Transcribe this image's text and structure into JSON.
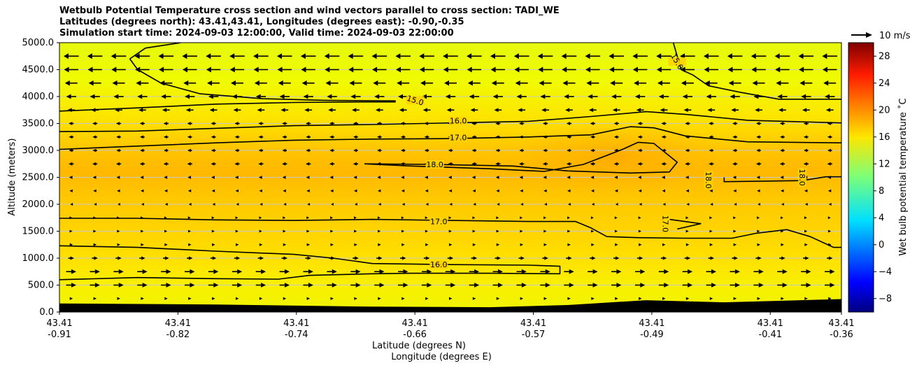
{
  "chart_data": {
    "type": "contour",
    "title_lines": [
      "Wetbulb Potential Temperature cross section and wind vectors parallel to cross section: TADI_WE",
      "Latitudes (degrees north): 43.41,43.41, Longitudes (degrees east): -0.90,-0.35",
      "Simulation start time: 2024-09-03 12:00:00, Valid time: 2024-09-03 22:00:00"
    ],
    "ylabel": "Altitude (meters)",
    "xlabel_lat": "Latitude (degrees N)",
    "xlabel_lon": "Longitude (degrees E)",
    "ylim": [
      0,
      5000
    ],
    "y_ticks": [
      "0.0",
      "500.0",
      "1000.0",
      "1500.0",
      "2000.0",
      "2500.0",
      "3000.0",
      "3500.0",
      "4000.0",
      "4500.0",
      "5000.0"
    ],
    "y_tick_values": [
      0,
      500,
      1000,
      1500,
      2000,
      2500,
      3000,
      3500,
      4000,
      4500,
      5000
    ],
    "x_ticks": [
      {
        "frac": 0.0,
        "lat": "43.41",
        "lon": "-0.91"
      },
      {
        "frac": 0.1515,
        "lat": "43.41",
        "lon": "-0.82"
      },
      {
        "frac": 0.303,
        "lat": "43.41",
        "lon": "-0.74"
      },
      {
        "frac": 0.4545,
        "lat": "43.41",
        "lon": "-0.66"
      },
      {
        "frac": 0.606,
        "lat": "43.41",
        "lon": "-0.57"
      },
      {
        "frac": 0.7575,
        "lat": "43.41",
        "lon": "-0.49"
      },
      {
        "frac": 0.909,
        "lat": "43.41",
        "lon": "-0.41"
      },
      {
        "frac": 1.0,
        "lat": "43.41",
        "lon": "-0.36"
      }
    ],
    "colorbar": {
      "label": "Wet bulb potential temperature $^\\circ$C",
      "label_display": "Wet bulb potential temperature ˚C",
      "range": [
        -10,
        30
      ],
      "ticks": [
        "−8",
        "−4",
        "0",
        "4",
        "8",
        "12",
        "16",
        "20",
        "24",
        "28"
      ],
      "tick_values": [
        -8,
        -4,
        0,
        4,
        8,
        12,
        16,
        20,
        24,
        28
      ],
      "colormap": "jet"
    },
    "quiver_key": {
      "label": "10 m/s"
    },
    "contour_labels": [
      {
        "text": "15.0",
        "x": 0.455,
        "alt": 3930,
        "rot": 18
      },
      {
        "text": "15.0",
        "x": 0.79,
        "alt": 4650,
        "rot": 60
      },
      {
        "text": "16.0",
        "x": 0.51,
        "alt": 3550,
        "rot": 0
      },
      {
        "text": "17.0",
        "x": 0.51,
        "alt": 3240,
        "rot": 0
      },
      {
        "text": "18.0",
        "x": 0.48,
        "alt": 2740,
        "rot": 0
      },
      {
        "text": "18.0",
        "x": 0.83,
        "alt": 2450,
        "rot": 90
      },
      {
        "text": "18.0",
        "x": 0.95,
        "alt": 2500,
        "rot": 90
      },
      {
        "text": "17.0",
        "x": 0.775,
        "alt": 1640,
        "rot": 90
      },
      {
        "text": "17.0",
        "x": 0.485,
        "alt": 1680,
        "rot": 0
      },
      {
        "text": "16.0",
        "x": 0.485,
        "alt": 880,
        "rot": 0
      }
    ],
    "contours": [
      {
        "level": 15,
        "points": [
          [
            0.09,
            4700
          ],
          [
            0.11,
            4900
          ],
          [
            0.155,
            5000
          ]
        ]
      },
      {
        "level": 15,
        "points": [
          [
            0.09,
            4700
          ],
          [
            0.1,
            4500
          ],
          [
            0.13,
            4250
          ],
          [
            0.18,
            4050
          ],
          [
            0.26,
            3960
          ],
          [
            0.34,
            3930
          ],
          [
            0.43,
            3920
          ]
        ]
      },
      {
        "level": 15,
        "points": [
          [
            0.0,
            3730
          ],
          [
            0.1,
            3790
          ],
          [
            0.2,
            3860
          ],
          [
            0.3,
            3890
          ],
          [
            0.38,
            3900
          ],
          [
            0.43,
            3900
          ]
        ]
      },
      {
        "level": 15,
        "points": [
          [
            0.785,
            5000
          ],
          [
            0.795,
            4500
          ],
          [
            0.81,
            4400
          ],
          [
            0.83,
            4200
          ],
          [
            0.87,
            4080
          ],
          [
            0.92,
            3950
          ],
          [
            1.0,
            3950
          ]
        ]
      },
      {
        "level": 16,
        "points": [
          [
            0.0,
            3350
          ],
          [
            0.1,
            3360
          ],
          [
            0.2,
            3410
          ],
          [
            0.3,
            3460
          ],
          [
            0.4,
            3480
          ],
          [
            0.5,
            3510
          ],
          [
            0.6,
            3540
          ],
          [
            0.68,
            3630
          ],
          [
            0.75,
            3720
          ],
          [
            0.8,
            3670
          ],
          [
            0.88,
            3560
          ],
          [
            1.0,
            3510
          ]
        ]
      },
      {
        "level": 17,
        "points": [
          [
            0.0,
            3020
          ],
          [
            0.1,
            3080
          ],
          [
            0.2,
            3140
          ],
          [
            0.3,
            3190
          ],
          [
            0.4,
            3210
          ],
          [
            0.5,
            3220
          ],
          [
            0.6,
            3250
          ],
          [
            0.68,
            3290
          ],
          [
            0.73,
            3440
          ],
          [
            0.76,
            3420
          ],
          [
            0.8,
            3270
          ],
          [
            0.88,
            3160
          ],
          [
            1.0,
            3140
          ]
        ]
      },
      {
        "level": 18,
        "points": [
          [
            0.39,
            2750
          ],
          [
            0.45,
            2710
          ],
          [
            0.55,
            2660
          ],
          [
            0.62,
            2610
          ],
          [
            0.67,
            2740
          ],
          [
            0.72,
            3020
          ],
          [
            0.74,
            3150
          ],
          [
            0.76,
            3130
          ],
          [
            0.79,
            2780
          ],
          [
            0.78,
            2600
          ],
          [
            0.73,
            2580
          ],
          [
            0.65,
            2620
          ],
          [
            0.58,
            2710
          ],
          [
            0.48,
            2740
          ],
          [
            0.39,
            2750
          ]
        ]
      },
      {
        "level": 18,
        "points": [
          [
            0.85,
            2500
          ],
          [
            0.85,
            2420
          ],
          [
            0.9,
            2430
          ],
          [
            0.95,
            2440
          ],
          [
            0.98,
            2510
          ],
          [
            1.0,
            2510
          ]
        ]
      },
      {
        "level": 17,
        "points": [
          [
            0.0,
            1740
          ],
          [
            0.1,
            1740
          ],
          [
            0.2,
            1710
          ],
          [
            0.3,
            1700
          ],
          [
            0.4,
            1720
          ],
          [
            0.5,
            1700
          ],
          [
            0.6,
            1680
          ],
          [
            0.66,
            1680
          ],
          [
            0.68,
            1560
          ],
          [
            0.7,
            1400
          ],
          [
            0.74,
            1380
          ],
          [
            0.8,
            1370
          ],
          [
            0.86,
            1370
          ],
          [
            0.89,
            1460
          ],
          [
            0.93,
            1530
          ],
          [
            0.96,
            1400
          ],
          [
            0.99,
            1200
          ],
          [
            1.0,
            1200
          ]
        ]
      },
      {
        "level": 17,
        "points": [
          [
            0.78,
            1720
          ],
          [
            0.82,
            1640
          ],
          [
            0.79,
            1540
          ]
        ]
      },
      {
        "level": 16,
        "points": [
          [
            0.0,
            1230
          ],
          [
            0.1,
            1200
          ],
          [
            0.2,
            1130
          ],
          [
            0.3,
            1070
          ],
          [
            0.35,
            1000
          ],
          [
            0.4,
            900
          ],
          [
            0.5,
            880
          ],
          [
            0.6,
            870
          ],
          [
            0.64,
            850
          ],
          [
            0.64,
            710
          ],
          [
            0.55,
            720
          ],
          [
            0.45,
            720
          ],
          [
            0.4,
            710
          ],
          [
            0.32,
            680
          ],
          [
            0.28,
            610
          ],
          [
            0.2,
            620
          ],
          [
            0.1,
            640
          ],
          [
            0.0,
            600
          ]
        ]
      }
    ],
    "terrain": [
      [
        0.0,
        160
      ],
      [
        0.2,
        140
      ],
      [
        0.4,
        100
      ],
      [
        0.55,
        90
      ],
      [
        0.65,
        130
      ],
      [
        0.75,
        220
      ],
      [
        0.85,
        180
      ],
      [
        1.0,
        240
      ]
    ],
    "wind_rows": [
      {
        "alt": 4750,
        "dir": -1,
        "mag": 0.9
      },
      {
        "alt": 4500,
        "dir": -1,
        "mag": 0.85
      },
      {
        "alt": 4250,
        "dir": -1,
        "mag": 0.75
      },
      {
        "alt": 4000,
        "dir": -1,
        "mag": 0.6
      },
      {
        "alt": 3750,
        "dir": -1,
        "mag": 0.45
      },
      {
        "alt": 3500,
        "dir": -1,
        "mag": 0.3
      },
      {
        "alt": 3250,
        "dir": -1,
        "mag": 0.28
      },
      {
        "alt": 3000,
        "dir": -1,
        "mag": 0.27
      },
      {
        "alt": 2750,
        "dir": -1,
        "mag": 0.3
      },
      {
        "alt": 2500,
        "dir": -1,
        "mag": 0.25
      },
      {
        "alt": 2250,
        "dir": -1,
        "mag": 0.2
      },
      {
        "alt": 2000,
        "dir": -1,
        "mag": 0.12
      },
      {
        "alt": 1750,
        "dir": 1,
        "mag": 0.12
      },
      {
        "alt": 1500,
        "dir": 1,
        "mag": 0.15
      },
      {
        "alt": 1250,
        "dir": 1,
        "mag": 0.2
      },
      {
        "alt": 1000,
        "dir": 1,
        "mag": 0.35
      },
      {
        "alt": 750,
        "dir": 1,
        "mag": 0.6
      },
      {
        "alt": 500,
        "dir": 1,
        "mag": 0.6
      },
      {
        "alt": 250,
        "dir": 1,
        "mag": 0.2
      }
    ],
    "colors": {
      "terrain": "#000000",
      "contour": "#000000",
      "grid": "#c8c8c8"
    }
  }
}
